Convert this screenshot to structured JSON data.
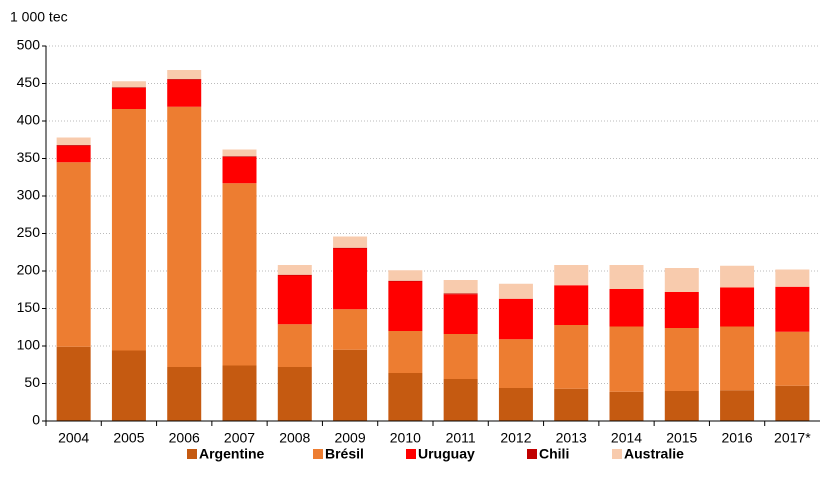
{
  "chart_data": {
    "type": "stacked_bar",
    "y_label": "1 000 tec",
    "categories": [
      "2004",
      "2005",
      "2006",
      "2007",
      "2008",
      "2009",
      "2010",
      "2011",
      "2012",
      "2013",
      "2014",
      "2015",
      "2016",
      "2017*"
    ],
    "series": [
      {
        "name": "Argentine",
        "color": "#c55a11",
        "values": [
          99,
          94,
          72,
          74,
          72,
          95,
          64,
          56,
          44,
          43,
          39,
          40,
          41,
          47
        ]
      },
      {
        "name": "Brésil",
        "color": "#ed7d31",
        "values": [
          246,
          322,
          347,
          243,
          57,
          54,
          56,
          60,
          65,
          85,
          87,
          84,
          85,
          72
        ]
      },
      {
        "name": "Uruguay",
        "color": "#ff0000",
        "values": [
          22,
          28,
          36,
          35,
          65,
          81,
          66,
          53,
          54,
          53,
          50,
          48,
          52,
          60
        ]
      },
      {
        "name": "Chili",
        "color": "#c00000",
        "values": [
          1,
          1,
          1,
          1,
          1,
          1,
          1,
          1,
          0,
          0,
          0,
          0,
          0,
          0
        ]
      },
      {
        "name": "Australie",
        "color": "#f8cbad",
        "values": [
          10,
          8,
          12,
          9,
          13,
          15,
          14,
          18,
          20,
          27,
          32,
          32,
          29,
          23
        ]
      }
    ],
    "ylim": [
      0,
      500
    ],
    "yticks": [
      0,
      50,
      100,
      150,
      200,
      250,
      300,
      350,
      400,
      450,
      500
    ],
    "grid": true,
    "legend": "bottom"
  }
}
